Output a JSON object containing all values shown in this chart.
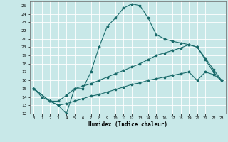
{
  "xlabel": "Humidex (Indice chaleur)",
  "xlim": [
    -0.5,
    23.5
  ],
  "ylim": [
    12,
    25.5
  ],
  "xticks": [
    0,
    1,
    2,
    3,
    4,
    5,
    6,
    7,
    8,
    9,
    10,
    11,
    12,
    13,
    14,
    15,
    16,
    17,
    18,
    19,
    20,
    21,
    22,
    23
  ],
  "yticks": [
    12,
    13,
    14,
    15,
    16,
    17,
    18,
    19,
    20,
    21,
    22,
    23,
    24,
    25
  ],
  "bg_color": "#c8e8e8",
  "line_color": "#1a6b6b",
  "grid_color": "#aed4d4",
  "curves": [
    {
      "x": [
        0,
        1,
        2,
        3,
        4,
        5,
        6,
        7,
        8,
        9,
        10,
        11,
        12,
        13,
        14,
        15,
        16,
        17,
        18,
        19,
        20,
        21,
        22,
        23
      ],
      "y": [
        15,
        14,
        13.5,
        13,
        12,
        15,
        15,
        17,
        20,
        22.5,
        23.5,
        24.7,
        25.2,
        25,
        23.5,
        21.5,
        21.0,
        20.7,
        20.5,
        20.3,
        20.0,
        18.5,
        17.0,
        16.0
      ]
    },
    {
      "x": [
        0,
        2,
        3,
        4,
        5,
        6,
        7,
        8,
        9,
        10,
        11,
        12,
        13,
        14,
        15,
        16,
        17,
        18,
        19,
        20,
        21,
        22,
        23
      ],
      "y": [
        15,
        13.5,
        13.5,
        14.2,
        15.0,
        15.3,
        15.6,
        16.0,
        16.4,
        16.8,
        17.2,
        17.6,
        18.0,
        18.5,
        19.0,
        19.3,
        19.6,
        19.9,
        20.3,
        20.0,
        18.7,
        17.3,
        16.0
      ]
    },
    {
      "x": [
        0,
        2,
        3,
        4,
        5,
        6,
        7,
        8,
        9,
        10,
        11,
        12,
        13,
        14,
        15,
        16,
        17,
        18,
        19,
        20,
        21,
        22,
        23
      ],
      "y": [
        15,
        13.5,
        13.0,
        13.2,
        13.5,
        13.8,
        14.1,
        14.3,
        14.6,
        14.9,
        15.2,
        15.5,
        15.7,
        16.0,
        16.2,
        16.4,
        16.6,
        16.8,
        17.0,
        16.0,
        17.0,
        16.7,
        16.0
      ]
    }
  ]
}
